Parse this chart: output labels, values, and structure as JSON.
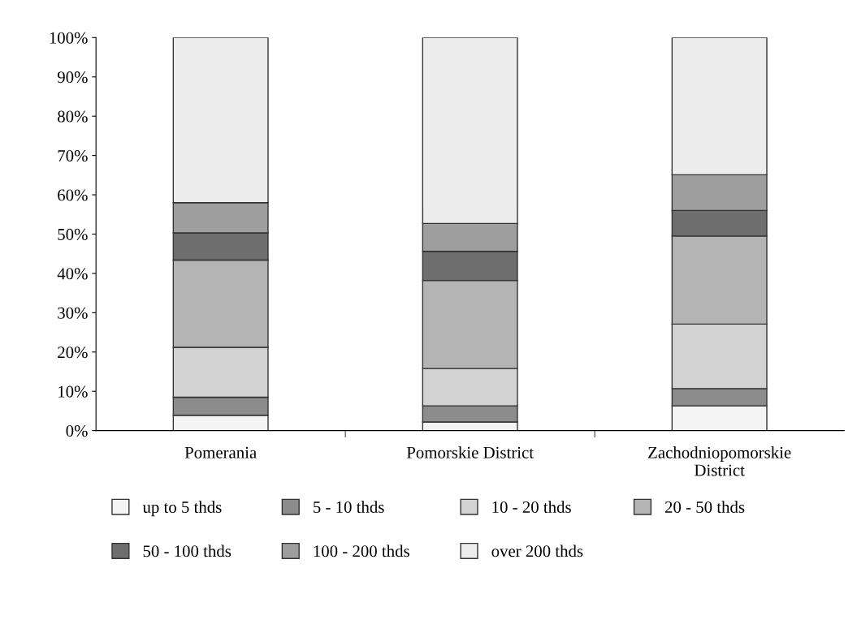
{
  "chart_data": {
    "type": "bar",
    "stacked": true,
    "categories": [
      "Pomerania",
      "Pomorskie District",
      "Zachodniopomorskie\nDistrict"
    ],
    "ylim": [
      0,
      100
    ],
    "yticks": [
      {
        "value": 0,
        "label": "0%"
      },
      {
        "value": 10,
        "label": "10%"
      },
      {
        "value": 20,
        "label": "20%"
      },
      {
        "value": 30,
        "label": "30%"
      },
      {
        "value": 40,
        "label": "40%"
      },
      {
        "value": 50,
        "label": "50%"
      },
      {
        "value": 60,
        "label": "60%"
      },
      {
        "value": 70,
        "label": "70%"
      },
      {
        "value": 80,
        "label": "80%"
      },
      {
        "value": 90,
        "label": "90%"
      },
      {
        "value": 100,
        "label": "100%"
      }
    ],
    "grid": false,
    "legend": "bottom",
    "series": [
      {
        "name": "up to 5 thds",
        "color": "#f4f4f4",
        "values": [
          3.9,
          2.2,
          6.3
        ]
      },
      {
        "name": "5 - 10 thds",
        "color": "#8c8c8c",
        "values": [
          4.6,
          4.1,
          4.4
        ]
      },
      {
        "name": "10 - 20 thds",
        "color": "#d2d2d2",
        "values": [
          12.7,
          9.5,
          16.4
        ]
      },
      {
        "name": "20 - 50 thds",
        "color": "#b4b4b4",
        "values": [
          22.2,
          22.4,
          22.4
        ]
      },
      {
        "name": "50 - 100 thds",
        "color": "#6e6e6e",
        "values": [
          6.9,
          7.4,
          6.5
        ]
      },
      {
        "name": "100 - 200 thds",
        "color": "#9e9e9e",
        "values": [
          7.7,
          7.1,
          9.1
        ]
      },
      {
        "name": "over 200 thds",
        "color": "#ececec",
        "values": [
          42.0,
          47.3,
          34.9
        ]
      }
    ]
  }
}
